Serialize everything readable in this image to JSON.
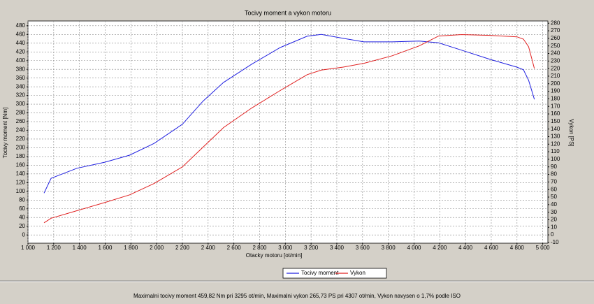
{
  "chart_data": {
    "type": "line",
    "title": "Tocivy moment a vykon motoru",
    "x_label": "Otacky motoru [ot/min]",
    "y_label": "Tocivy moment [Nm]",
    "y2_label": "Vykon [PS]",
    "footer": "Maximalni tocivy moment 459,82 Nm pri 3295 ot/min,  Maximalni vykon 265,73 PS pri 4307 ot/min,  Vykon navysen o 1,7% podle ISO",
    "x": [
      1125,
      1180,
      1380,
      1600,
      1790,
      1980,
      2200,
      2360,
      2520,
      2740,
      2960,
      3170,
      3280,
      3450,
      3610,
      3830,
      4040,
      4190,
      4370,
      4590,
      4800,
      4850,
      4890,
      4935
    ],
    "series": [
      {
        "name": "Tocivy moment",
        "color": "#2020e0",
        "axis": "y",
        "values": [
          96,
          130,
          153,
          167,
          183,
          210,
          254,
          307,
          350,
          392,
          430,
          456,
          460,
          451,
          443,
          443,
          445,
          441,
          424,
          403,
          385,
          379,
          355,
          311
        ]
      },
      {
        "name": "Vykon",
        "color": "#e02020",
        "axis": "y2",
        "values": [
          16,
          22,
          32,
          43,
          53,
          68,
          90,
          116,
          142,
          168,
          191,
          212,
          218,
          222,
          227,
          237,
          250,
          263,
          265,
          264,
          262,
          259,
          249,
          220
        ]
      }
    ],
    "xlim": [
      1000,
      5040
    ],
    "ylim": [
      -19,
      491
    ],
    "y2lim": [
      -11,
      283
    ],
    "xticks": [
      {
        "value": 1000,
        "label": "1 000"
      },
      {
        "value": 1200,
        "label": "1 200"
      },
      {
        "value": 1400,
        "label": "1 400"
      },
      {
        "value": 1600,
        "label": "1 600"
      },
      {
        "value": 1800,
        "label": "1 800"
      },
      {
        "value": 2000,
        "label": "2 000"
      },
      {
        "value": 2200,
        "label": "2 200"
      },
      {
        "value": 2400,
        "label": "2 400"
      },
      {
        "value": 2600,
        "label": "2 600"
      },
      {
        "value": 2800,
        "label": "2 800"
      },
      {
        "value": 3000,
        "label": "3 000"
      },
      {
        "value": 3200,
        "label": "3 200"
      },
      {
        "value": 3400,
        "label": "3 400"
      },
      {
        "value": 3600,
        "label": "3 600"
      },
      {
        "value": 3800,
        "label": "3 800"
      },
      {
        "value": 4000,
        "label": "4 000"
      },
      {
        "value": 4200,
        "label": "4 200"
      },
      {
        "value": 4400,
        "label": "4 400"
      },
      {
        "value": 4600,
        "label": "4 600"
      },
      {
        "value": 4800,
        "label": "4 800"
      },
      {
        "value": 5000,
        "label": "5 000"
      }
    ],
    "yticks": [
      0,
      20,
      40,
      60,
      80,
      100,
      120,
      140,
      160,
      180,
      200,
      220,
      240,
      260,
      280,
      300,
      320,
      340,
      360,
      380,
      400,
      420,
      440,
      460,
      480
    ],
    "y2ticks": [
      -10,
      0,
      10,
      20,
      30,
      40,
      50,
      60,
      70,
      80,
      90,
      100,
      110,
      120,
      130,
      140,
      150,
      160,
      170,
      180,
      190,
      200,
      210,
      220,
      230,
      240,
      250,
      260,
      270,
      280
    ],
    "grid": true
  }
}
